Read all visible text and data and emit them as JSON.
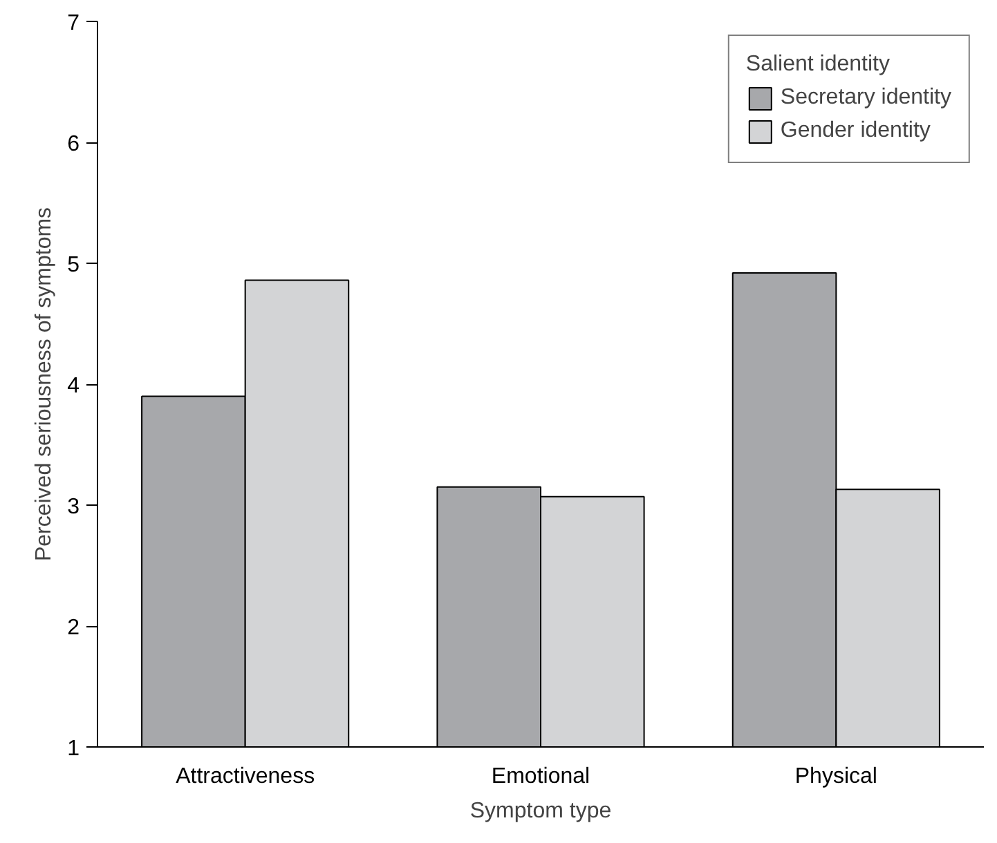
{
  "chart_data": {
    "type": "bar",
    "xlabel": "Symptom type",
    "ylabel": "Perceived seriousness of symptoms",
    "legend_title": "Salient identity",
    "categories": [
      "Attractiveness",
      "Emotional",
      "Physical"
    ],
    "series": [
      {
        "name": "Secretary identity",
        "color": "#a7a8ab",
        "values": [
          3.9,
          3.15,
          4.92
        ]
      },
      {
        "name": "Gender identity",
        "color": "#d3d4d6",
        "values": [
          4.86,
          3.07,
          3.13
        ]
      }
    ],
    "ylim": [
      1,
      7
    ],
    "yticks": [
      1,
      2,
      3,
      4,
      5,
      6,
      7
    ],
    "grid": false,
    "legend": "top right"
  }
}
